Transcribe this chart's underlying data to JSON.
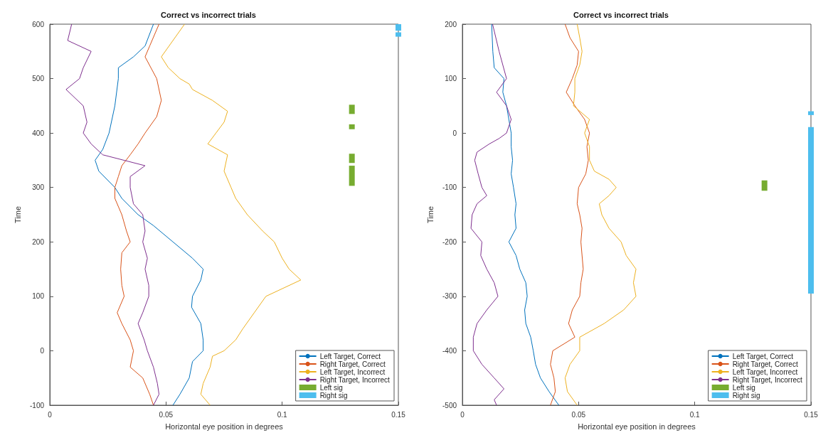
{
  "chart_data": [
    {
      "type": "line",
      "title": "Correct vs incorrect trials",
      "xlabel": "Horizontal eye position in degrees",
      "ylabel": "Time",
      "xlim": [
        0,
        0.15
      ],
      "xticks": [
        0,
        0.05,
        0.1,
        0.15
      ],
      "ylim": [
        -100,
        600
      ],
      "yticks": [
        -100,
        0,
        100,
        200,
        300,
        400,
        500,
        600
      ],
      "legend": "bottom right",
      "grid": false,
      "marker": "none",
      "line_style": "solid",
      "series": [
        {
          "name": "Left Target, Correct",
          "color": "#0072bd",
          "x": [
            0.0446,
            0.041,
            0.036,
            0.0295,
            0.0295,
            0.028,
            0.0255,
            0.0228,
            0.0195,
            0.0211,
            0.028,
            0.031,
            0.038,
            0.0446,
            0.053,
            0.0614,
            0.066,
            0.065,
            0.0614,
            0.061,
            0.065,
            0.066,
            0.066,
            0.0614,
            0.06,
            0.056,
            0.053
          ],
          "values": [
            600,
            560,
            540,
            520,
            500,
            450,
            400,
            370,
            350,
            330,
            300,
            280,
            250,
            230,
            200,
            170,
            150,
            130,
            100,
            80,
            50,
            20,
            0,
            -20,
            -50,
            -80,
            -100
          ]
        },
        {
          "name": "Right Target, Correct",
          "color": "#d95319",
          "x": [
            0.047,
            0.043,
            0.041,
            0.046,
            0.048,
            0.046,
            0.041,
            0.038,
            0.0346,
            0.031,
            0.0295,
            0.028,
            0.028,
            0.031,
            0.033,
            0.0346,
            0.031,
            0.0305,
            0.031,
            0.032,
            0.029,
            0.031,
            0.0346,
            0.036,
            0.0346,
            0.04,
            0.043,
            0.0446
          ],
          "values": [
            600,
            560,
            540,
            500,
            460,
            430,
            400,
            380,
            360,
            340,
            320,
            300,
            280,
            250,
            220,
            200,
            180,
            150,
            120,
            100,
            70,
            50,
            20,
            0,
            -30,
            -50,
            -80,
            -100
          ]
        },
        {
          "name": "Left Target, Incorrect",
          "color": "#edb120",
          "x": [
            0.058,
            0.053,
            0.048,
            0.051,
            0.056,
            0.06,
            0.0614,
            0.07,
            0.0765,
            0.075,
            0.0715,
            0.068,
            0.0765,
            0.075,
            0.078,
            0.08,
            0.085,
            0.0916,
            0.0966,
            0.1,
            0.103,
            0.108,
            0.098,
            0.093,
            0.088,
            0.083,
            0.08,
            0.075,
            0.07,
            0.069,
            0.066,
            0.065,
            0.069
          ],
          "values": [
            600,
            570,
            540,
            520,
            500,
            490,
            480,
            460,
            440,
            420,
            400,
            380,
            360,
            330,
            300,
            280,
            250,
            220,
            200,
            170,
            150,
            130,
            110,
            100,
            70,
            40,
            20,
            0,
            -10,
            -30,
            -60,
            -80,
            -100
          ]
        },
        {
          "name": "Right Target, Incorrect",
          "color": "#7e2f8e",
          "x": [
            0.0094,
            0.0077,
            0.0178,
            0.0144,
            0.0128,
            0.007,
            0.0144,
            0.016,
            0.0144,
            0.0178,
            0.0228,
            0.041,
            0.0346,
            0.0346,
            0.036,
            0.04,
            0.041,
            0.04,
            0.042,
            0.041,
            0.0426,
            0.0426,
            0.04,
            0.038,
            0.0406,
            0.042,
            0.0446,
            0.0463,
            0.047,
            0.0446
          ],
          "values": [
            600,
            570,
            550,
            520,
            500,
            480,
            450,
            420,
            400,
            380,
            360,
            340,
            320,
            300,
            270,
            250,
            220,
            200,
            170,
            150,
            120,
            100,
            70,
            50,
            20,
            0,
            -30,
            -60,
            -80,
            -100
          ]
        },
        {
          "name": "Left sig",
          "color": "#77ac30",
          "x": [
            0.13,
            0.13
          ],
          "values": [
            435,
            452
          ]
        },
        {
          "color": "#77ac30",
          "x": [
            0.13,
            0.13
          ],
          "values": [
            407,
            416
          ]
        },
        {
          "color": "#77ac30",
          "x": [
            0.13,
            0.13
          ],
          "values": [
            345,
            362
          ]
        },
        {
          "color": "#77ac30",
          "x": [
            0.13,
            0.13
          ],
          "values": [
            303,
            340
          ]
        },
        {
          "name": "Right sig",
          "color": "#4dbeee",
          "x": [
            0.15,
            0.15
          ],
          "values": [
            588,
            600
          ]
        },
        {
          "color": "#4dbeee",
          "x": [
            0.15,
            0.15
          ],
          "values": [
            577,
            585
          ]
        }
      ]
    },
    {
      "type": "line",
      "title": "Correct vs incorrect trials",
      "xlabel": "Horizontal eye position in degrees",
      "ylabel": "Time",
      "xlim": [
        0,
        0.15
      ],
      "xticks": [
        0,
        0.05,
        0.1,
        0.15
      ],
      "ylim": [
        -500,
        200
      ],
      "yticks": [
        -500,
        -400,
        -300,
        -200,
        -100,
        0,
        100,
        200
      ],
      "legend": "bottom right",
      "grid": false,
      "marker": "none",
      "line_style": "solid",
      "series": [
        {
          "name": "Left Target, Correct",
          "color": "#0072bd",
          "x": [
            0.0126,
            0.0131,
            0.0137,
            0.0179,
            0.0174,
            0.019,
            0.02,
            0.021,
            0.021,
            0.0216,
            0.021,
            0.022,
            0.0231,
            0.0226,
            0.0231,
            0.02,
            0.0231,
            0.0247,
            0.0273,
            0.0279,
            0.0268,
            0.0273,
            0.0294,
            0.0305,
            0.0315,
            0.0336,
            0.0373,
            0.0415
          ],
          "values": [
            200,
            150,
            120,
            100,
            75,
            50,
            25,
            0,
            -25,
            -50,
            -75,
            -100,
            -130,
            -150,
            -175,
            -200,
            -225,
            -250,
            -275,
            -300,
            -325,
            -350,
            -375,
            -400,
            -425,
            -450,
            -475,
            -500
          ]
        },
        {
          "name": "Right Target, Correct",
          "color": "#d95319",
          "x": [
            0.0442,
            0.0463,
            0.05,
            0.0494,
            0.0473,
            0.0447,
            0.0484,
            0.0526,
            0.0547,
            0.0536,
            0.0542,
            0.0531,
            0.05,
            0.0494,
            0.0505,
            0.0515,
            0.051,
            0.052,
            0.051,
            0.0505,
            0.0473,
            0.0457,
            0.0484,
            0.0389,
            0.0379,
            0.0394,
            0.04,
            0.0379
          ],
          "values": [
            200,
            175,
            150,
            125,
            100,
            75,
            50,
            25,
            0,
            -25,
            -50,
            -75,
            -100,
            -130,
            -150,
            -175,
            -200,
            -250,
            -275,
            -300,
            -325,
            -350,
            -375,
            -400,
            -425,
            -450,
            -475,
            -500
          ]
        },
        {
          "name": "Left Target, Incorrect",
          "color": "#edb120",
          "x": [
            0.0494,
            0.0505,
            0.0515,
            0.0505,
            0.0484,
            0.0484,
            0.0478,
            0.0547,
            0.0526,
            0.0547,
            0.0547,
            0.0568,
            0.0631,
            0.0662,
            0.0631,
            0.0589,
            0.06,
            0.0631,
            0.0683,
            0.0705,
            0.0747,
            0.0736,
            0.0747,
            0.0694,
            0.061,
            0.0505,
            0.0505,
            0.0463,
            0.0442,
            0.0452,
            0.0494
          ],
          "values": [
            200,
            175,
            150,
            125,
            100,
            75,
            50,
            25,
            0,
            -25,
            -50,
            -70,
            -85,
            -100,
            -115,
            -130,
            -150,
            -175,
            -200,
            -225,
            -250,
            -275,
            -300,
            -325,
            -350,
            -375,
            -400,
            -425,
            -450,
            -475,
            -500
          ]
        },
        {
          "name": "Right Target, Incorrect",
          "color": "#7e2f8e",
          "x": [
            0.013,
            0.0158,
            0.019,
            0.0147,
            0.019,
            0.021,
            0.019,
            0.0158,
            0.0116,
            0.0063,
            0.0053,
            0.0068,
            0.0084,
            0.0105,
            0.0063,
            0.0042,
            0.0037,
            0.0084,
            0.0079,
            0.0105,
            0.0137,
            0.0153,
            0.0105,
            0.0063,
            0.0047,
            0.0047,
            0.0084,
            0.0137,
            0.0179,
            0.0137,
            0.0147
          ],
          "values": [
            200,
            150,
            100,
            75,
            50,
            25,
            0,
            -10,
            -20,
            -35,
            -50,
            -75,
            -100,
            -115,
            -130,
            -150,
            -175,
            -200,
            -225,
            -250,
            -275,
            -300,
            -325,
            -350,
            -375,
            -400,
            -425,
            -450,
            -470,
            -490,
            -500
          ]
        },
        {
          "name": "Left sig",
          "color": "#77ac30",
          "x": [
            0.13,
            0.13
          ],
          "values": [
            -106,
            -87
          ]
        },
        {
          "name": "Right sig",
          "color": "#4dbeee",
          "x": [
            0.15,
            0.15
          ],
          "values": [
            33,
            40
          ]
        },
        {
          "color": "#4dbeee",
          "x": [
            0.15,
            0.15
          ],
          "values": [
            -295,
            11
          ]
        }
      ]
    }
  ]
}
